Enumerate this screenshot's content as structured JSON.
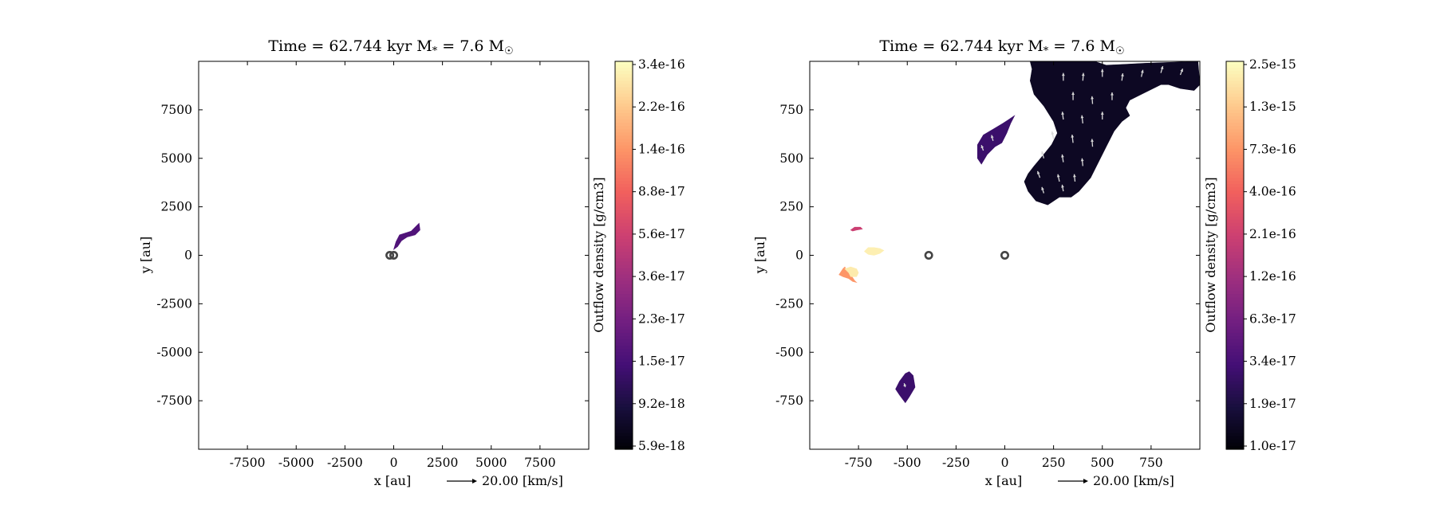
{
  "colors": {
    "background": "#ffffff",
    "colormap": [
      "#000004",
      "#180f3d",
      "#440f76",
      "#721f81",
      "#9e2f7f",
      "#cd4071",
      "#f1605d",
      "#fd9567",
      "#feca8d",
      "#fcfdbf"
    ],
    "star_marker": "#444444",
    "velocity_arrow": "#d8d8d8"
  },
  "chart_data": [
    {
      "type": "heatmap",
      "panel": "left",
      "title": "Time = 62.744 kyr    M<sub>*</sub> = 7.6 M<sub>☉</sub>",
      "xlabel": "x [au]",
      "ylabel": "y [au]",
      "xlim": [
        -10000,
        10000
      ],
      "ylim": [
        -10000,
        10000
      ],
      "xticks": [
        -7500,
        -5000,
        -2500,
        0,
        2500,
        5000,
        7500
      ],
      "xtick_labels": [
        "-7500",
        "-5000",
        "-2500",
        "0",
        "2500",
        "5000",
        "7500"
      ],
      "yticks": [
        7500,
        5000,
        2500,
        0,
        -2500,
        -5000,
        -7500
      ],
      "ytick_labels": [
        "7500",
        "5000",
        "2500",
        "0",
        "-2500",
        "-5000",
        "-7500"
      ],
      "velocity_key": {
        "label": "20.00 [km/s]",
        "value": 20.0,
        "unit": "km/s"
      },
      "colorbar": {
        "label": "Outflow density [g/cm3]",
        "scale": "log",
        "range": [
          5.9e-18,
          3.4e-16
        ],
        "tick_labels": [
          "3.4e-16",
          "2.2e-16",
          "1.4e-16",
          "8.8e-17",
          "5.6e-17",
          "3.6e-17",
          "2.3e-17",
          "1.5e-17",
          "9.2e-18",
          "5.9e-18"
        ]
      },
      "stars": [
        {
          "x": -200,
          "y": 0
        },
        {
          "x": 0,
          "y": 0
        }
      ],
      "regions": [
        {
          "level": 0.25,
          "points": [
            [
              0,
              300
            ],
            [
              120,
              700
            ],
            [
              300,
              1050
            ],
            [
              600,
              1150
            ],
            [
              900,
              1250
            ],
            [
              1300,
              1650
            ],
            [
              1350,
              1300
            ],
            [
              1100,
              1050
            ],
            [
              700,
              950
            ],
            [
              400,
              750
            ],
            [
              200,
              450
            ]
          ]
        }
      ],
      "vectors": []
    },
    {
      "type": "heatmap",
      "panel": "right",
      "title": "Time = 62.744 kyr    M<sub>*</sub> = 7.6 M<sub>☉</sub>",
      "xlabel": "x [au]",
      "ylabel": "y [au]",
      "xlim": [
        -1000,
        1000
      ],
      "ylim": [
        -1000,
        1000
      ],
      "xticks": [
        -750,
        -500,
        -250,
        0,
        250,
        500,
        750
      ],
      "xtick_labels": [
        "-750",
        "-500",
        "-250",
        "0",
        "250",
        "500",
        "750"
      ],
      "yticks": [
        750,
        500,
        250,
        0,
        -250,
        -500,
        -750
      ],
      "ytick_labels": [
        "750",
        "500",
        "250",
        "0",
        "-250",
        "-500",
        "-750"
      ],
      "velocity_key": {
        "label": "20.00 [km/s]",
        "value": 20.0,
        "unit": "km/s"
      },
      "colorbar": {
        "label": "Outflow density [g/cm3]",
        "scale": "log",
        "range": [
          1e-17,
          2.5e-15
        ],
        "tick_labels": [
          "2.5e-15",
          "1.3e-15",
          "7.3e-16",
          "4.0e-16",
          "2.1e-16",
          "1.2e-16",
          "6.3e-17",
          "3.4e-17",
          "1.9e-17",
          "1.0e-17"
        ]
      },
      "stars": [
        {
          "x": -390,
          "y": 0
        },
        {
          "x": 0,
          "y": 0
        }
      ],
      "regions": [
        {
          "level": 0.06,
          "points": [
            [
              130,
              1000
            ],
            [
              460,
              1000
            ],
            [
              520,
              980
            ],
            [
              720,
              990
            ],
            [
              990,
              1000
            ],
            [
              1000,
              880
            ],
            [
              970,
              850
            ],
            [
              900,
              860
            ],
            [
              840,
              880
            ],
            [
              800,
              880
            ],
            [
              760,
              860
            ],
            [
              700,
              830
            ],
            [
              640,
              800
            ],
            [
              620,
              760
            ],
            [
              640,
              720
            ],
            [
              600,
              690
            ],
            [
              560,
              640
            ],
            [
              520,
              560
            ],
            [
              440,
              400
            ],
            [
              380,
              330
            ],
            [
              340,
              300
            ],
            [
              280,
              300
            ],
            [
              220,
              260
            ],
            [
              160,
              280
            ],
            [
              120,
              330
            ],
            [
              100,
              380
            ],
            [
              120,
              420
            ],
            [
              150,
              460
            ],
            [
              200,
              520
            ],
            [
              240,
              570
            ],
            [
              270,
              630
            ],
            [
              250,
              690
            ],
            [
              200,
              770
            ],
            [
              150,
              830
            ],
            [
              130,
              900
            ],
            [
              140,
              960
            ]
          ]
        },
        {
          "level": 0.2,
          "points": [
            [
              -15,
              580
            ],
            [
              10,
              630
            ],
            [
              30,
              680
            ],
            [
              50,
              720
            ],
            [
              20,
              700
            ],
            [
              -10,
              680
            ],
            [
              -60,
              650
            ],
            [
              -110,
              620
            ],
            [
              -140,
              570
            ],
            [
              -140,
              500
            ],
            [
              -120,
              470
            ],
            [
              -90,
              520
            ],
            [
              -50,
              560
            ]
          ]
        },
        {
          "level": 0.2,
          "points": [
            [
              -470,
              -620
            ],
            [
              -460,
              -680
            ],
            [
              -490,
              -730
            ],
            [
              -510,
              -760
            ],
            [
              -540,
              -720
            ],
            [
              -560,
              -690
            ],
            [
              -540,
              -650
            ],
            [
              -510,
              -610
            ],
            [
              -490,
              -600
            ]
          ]
        },
        {
          "level": 0.78,
          "points": [
            [
              -820,
              -60
            ],
            [
              -810,
              -80
            ],
            [
              -790,
              -100
            ],
            [
              -770,
              -130
            ],
            [
              -760,
              -140
            ],
            [
              -780,
              -135
            ],
            [
              -800,
              -120
            ],
            [
              -830,
              -110
            ],
            [
              -850,
              -100
            ],
            [
              -830,
              -70
            ]
          ]
        },
        {
          "level": 0.96,
          "points": [
            [
              -820,
              -70
            ],
            [
              -790,
              -60
            ],
            [
              -760,
              -70
            ],
            [
              -750,
              -90
            ],
            [
              -760,
              -110
            ],
            [
              -790,
              -110
            ],
            [
              -800,
              -90
            ]
          ]
        },
        {
          "level": 0.97,
          "points": [
            [
              -720,
              20
            ],
            [
              -700,
              40
            ],
            [
              -670,
              40
            ],
            [
              -640,
              35
            ],
            [
              -620,
              25
            ],
            [
              -640,
              10
            ],
            [
              -670,
              0
            ],
            [
              -700,
              5
            ]
          ]
        },
        {
          "level": 0.55,
          "points": [
            [
              -790,
              130
            ],
            [
              -770,
              145
            ],
            [
              -740,
              145
            ],
            [
              -730,
              135
            ],
            [
              -760,
              130
            ],
            [
              -780,
              125
            ]
          ]
        }
      ],
      "vectors": [
        {
          "x": 300,
          "y": 900,
          "dx": 0,
          "dy": 40
        },
        {
          "x": 400,
          "y": 900,
          "dx": 3,
          "dy": 40
        },
        {
          "x": 500,
          "y": 920,
          "dx": 0,
          "dy": 40
        },
        {
          "x": 600,
          "y": 900,
          "dx": 5,
          "dy": 38
        },
        {
          "x": 700,
          "y": 920,
          "dx": 8,
          "dy": 36
        },
        {
          "x": 800,
          "y": 940,
          "dx": 10,
          "dy": 35
        },
        {
          "x": 900,
          "y": 930,
          "dx": 12,
          "dy": 32
        },
        {
          "x": 350,
          "y": 800,
          "dx": 0,
          "dy": 42
        },
        {
          "x": 450,
          "y": 780,
          "dx": -3,
          "dy": 40
        },
        {
          "x": 550,
          "y": 800,
          "dx": 0,
          "dy": 40
        },
        {
          "x": 300,
          "y": 700,
          "dx": -5,
          "dy": 40
        },
        {
          "x": 400,
          "y": 680,
          "dx": -5,
          "dy": 42
        },
        {
          "x": 500,
          "y": 700,
          "dx": 0,
          "dy": 40
        },
        {
          "x": 250,
          "y": 600,
          "dx": -8,
          "dy": 38
        },
        {
          "x": 350,
          "y": 580,
          "dx": -5,
          "dy": 42
        },
        {
          "x": 450,
          "y": 560,
          "dx": -3,
          "dy": 40
        },
        {
          "x": 200,
          "y": 500,
          "dx": -10,
          "dy": 36
        },
        {
          "x": 300,
          "y": 480,
          "dx": -6,
          "dy": 40
        },
        {
          "x": 400,
          "y": 460,
          "dx": -4,
          "dy": 40
        },
        {
          "x": 180,
          "y": 400,
          "dx": -12,
          "dy": 34
        },
        {
          "x": 280,
          "y": 380,
          "dx": -8,
          "dy": 38
        },
        {
          "x": 360,
          "y": 380,
          "dx": -4,
          "dy": 38
        },
        {
          "x": 200,
          "y": 320,
          "dx": -10,
          "dy": 32
        },
        {
          "x": 300,
          "y": 330,
          "dx": -6,
          "dy": 34
        },
        {
          "x": -60,
          "y": 590,
          "dx": -8,
          "dy": 30
        },
        {
          "x": -110,
          "y": 540,
          "dx": -10,
          "dy": 28
        },
        {
          "x": -510,
          "y": -680,
          "dx": -6,
          "dy": 20
        }
      ]
    }
  ]
}
